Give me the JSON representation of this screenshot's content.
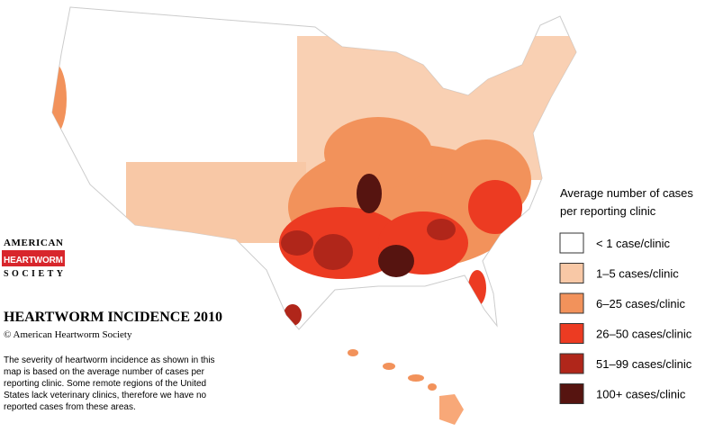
{
  "logo": {
    "top": "AMERICAN",
    "middle": "HEARTWORM",
    "bottom": "SOCIETY"
  },
  "title": "HEARTWORM INCIDENCE 2010",
  "copyright": "© American Heartworm Society",
  "description": [
    "The severity of heartworm incidence as shown in this",
    "map is based on the average number of cases per",
    "reporting clinic.  Some remote regions of the United",
    "States lack veterinary clinics, therefore we have no",
    "reported cases from these areas."
  ],
  "legend": {
    "title": [
      "Average number of cases",
      "per reporting clinic"
    ],
    "items": [
      {
        "label": "< 1 case/clinic",
        "color": "#ffffff"
      },
      {
        "label": "1–5 cases/clinic",
        "color": "#f8c8a6"
      },
      {
        "label": "6–25  cases/clinic",
        "color": "#f2925b"
      },
      {
        "label": "26–50   cases/clinic",
        "color": "#ec3b22"
      },
      {
        "label": "51–99  cases/clinic",
        "color": "#b0261a"
      },
      {
        "label": "100+ cases/clinic",
        "color": "#561410"
      }
    ]
  }
}
